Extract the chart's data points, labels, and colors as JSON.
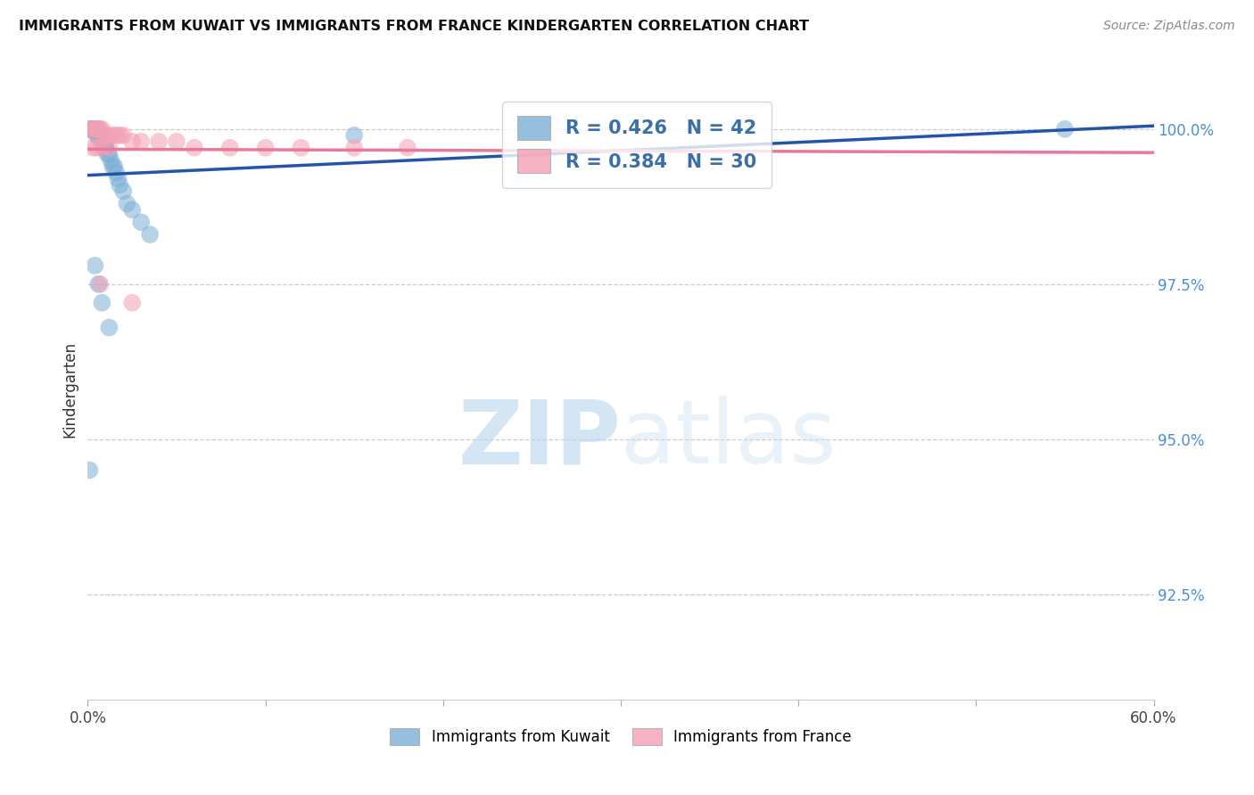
{
  "title": "IMMIGRANTS FROM KUWAIT VS IMMIGRANTS FROM FRANCE KINDERGARTEN CORRELATION CHART",
  "source": "Source: ZipAtlas.com",
  "ylabel": "Kindergarten",
  "ylabel_right_ticks": [
    "100.0%",
    "97.5%",
    "95.0%",
    "92.5%"
  ],
  "ylabel_right_values": [
    1.0,
    0.975,
    0.95,
    0.925
  ],
  "xmin": 0.0,
  "xmax": 0.6,
  "ymin": 0.908,
  "ymax": 1.008,
  "kuwait_color": "#7bafd4",
  "france_color": "#f4a0b5",
  "kuwait_line_color": "#2255aa",
  "france_line_color": "#e8799a",
  "kuwait_R": 0.426,
  "kuwait_N": 42,
  "france_R": 0.384,
  "france_N": 30,
  "kuwait_x": [
    0.001,
    0.002,
    0.002,
    0.003,
    0.003,
    0.003,
    0.004,
    0.004,
    0.004,
    0.005,
    0.005,
    0.005,
    0.006,
    0.006,
    0.007,
    0.007,
    0.008,
    0.008,
    0.009,
    0.009,
    0.01,
    0.01,
    0.011,
    0.012,
    0.013,
    0.014,
    0.015,
    0.016,
    0.017,
    0.018,
    0.02,
    0.022,
    0.025,
    0.03,
    0.035,
    0.004,
    0.006,
    0.008,
    0.012,
    0.15,
    0.55,
    0.001
  ],
  "kuwait_y": [
    1.0,
    1.0,
    1.0,
    1.0,
    1.0,
    1.0,
    1.0,
    1.0,
    1.0,
    1.0,
    1.0,
    0.999,
    0.999,
    0.999,
    0.999,
    0.999,
    0.999,
    0.998,
    0.998,
    0.997,
    0.997,
    0.997,
    0.996,
    0.996,
    0.995,
    0.994,
    0.994,
    0.993,
    0.992,
    0.991,
    0.99,
    0.988,
    0.987,
    0.985,
    0.983,
    0.978,
    0.975,
    0.972,
    0.968,
    0.999,
    1.0,
    0.945
  ],
  "france_x": [
    0.002,
    0.003,
    0.004,
    0.005,
    0.006,
    0.007,
    0.008,
    0.009,
    0.01,
    0.012,
    0.014,
    0.016,
    0.018,
    0.02,
    0.025,
    0.03,
    0.04,
    0.05,
    0.06,
    0.08,
    0.1,
    0.12,
    0.15,
    0.18,
    0.003,
    0.005,
    0.008,
    0.012,
    0.007,
    0.025
  ],
  "france_y": [
    1.0,
    1.0,
    1.0,
    1.0,
    1.0,
    1.0,
    1.0,
    0.999,
    0.999,
    0.999,
    0.999,
    0.999,
    0.999,
    0.999,
    0.998,
    0.998,
    0.998,
    0.998,
    0.997,
    0.997,
    0.997,
    0.997,
    0.997,
    0.997,
    0.997,
    0.997,
    0.997,
    0.997,
    0.975,
    0.972
  ]
}
